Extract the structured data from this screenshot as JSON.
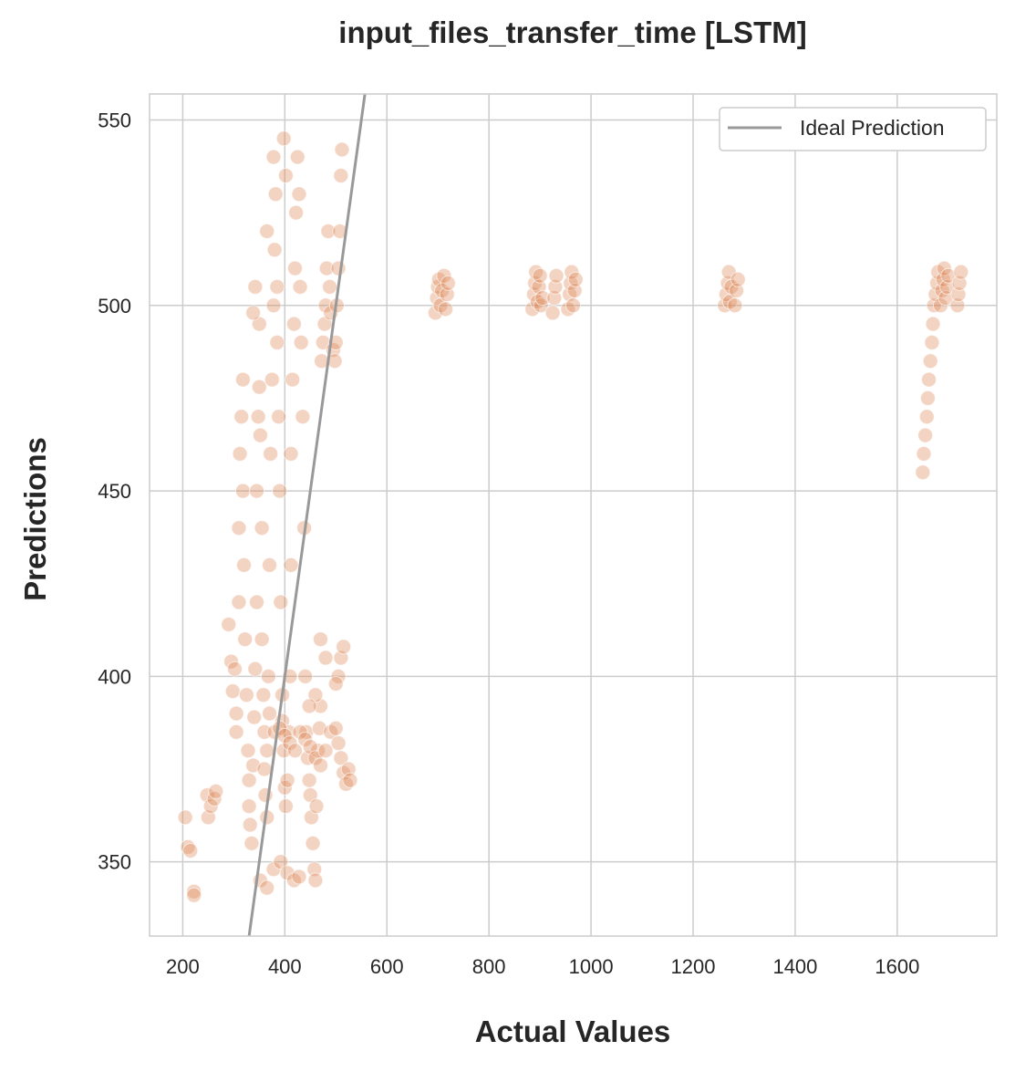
{
  "chart_data": {
    "type": "scatter",
    "title": "input_files_transfer_time [LSTM]",
    "xlabel": "Actual Values",
    "ylabel": "Predictions",
    "xlim": [
      135,
      1795
    ],
    "ylim": [
      330,
      557
    ],
    "xticks": [
      200,
      400,
      600,
      800,
      1000,
      1200,
      1400,
      1600
    ],
    "yticks": [
      350,
      400,
      450,
      500,
      550
    ],
    "grid": true,
    "legend_position": "top-right",
    "point_color": "#dd8452",
    "ideal_line_color": "#999999",
    "series": [
      {
        "name": "",
        "kind": "points",
        "points": [
          [
            205,
            362
          ],
          [
            210,
            354
          ],
          [
            215,
            353
          ],
          [
            222,
            342
          ],
          [
            222,
            341
          ],
          [
            248,
            368
          ],
          [
            250,
            362
          ],
          [
            255,
            365
          ],
          [
            262,
            367
          ],
          [
            265,
            369
          ],
          [
            290,
            414
          ],
          [
            295,
            404
          ],
          [
            298,
            396
          ],
          [
            302,
            402
          ],
          [
            305,
            390
          ],
          [
            305,
            385
          ],
          [
            310,
            420
          ],
          [
            310,
            440
          ],
          [
            312,
            460
          ],
          [
            315,
            470
          ],
          [
            318,
            480
          ],
          [
            318,
            450
          ],
          [
            320,
            430
          ],
          [
            322,
            410
          ],
          [
            325,
            395
          ],
          [
            328,
            380
          ],
          [
            330,
            372
          ],
          [
            330,
            365
          ],
          [
            332,
            360
          ],
          [
            335,
            355
          ],
          [
            338,
            376
          ],
          [
            340,
            389
          ],
          [
            342,
            402
          ],
          [
            345,
            420
          ],
          [
            345,
            450
          ],
          [
            348,
            470
          ],
          [
            350,
            478
          ],
          [
            352,
            465
          ],
          [
            355,
            440
          ],
          [
            355,
            410
          ],
          [
            358,
            395
          ],
          [
            360,
            385
          ],
          [
            360,
            375
          ],
          [
            362,
            368
          ],
          [
            365,
            362
          ],
          [
            365,
            380
          ],
          [
            368,
            400
          ],
          [
            370,
            430
          ],
          [
            372,
            460
          ],
          [
            375,
            480
          ],
          [
            378,
            500
          ],
          [
            380,
            515
          ],
          [
            382,
            530
          ],
          [
            385,
            505
          ],
          [
            385,
            490
          ],
          [
            388,
            470
          ],
          [
            390,
            450
          ],
          [
            392,
            420
          ],
          [
            395,
            395
          ],
          [
            395,
            388
          ],
          [
            398,
            380
          ],
          [
            400,
            370
          ],
          [
            402,
            365
          ],
          [
            405,
            372
          ],
          [
            408,
            385
          ],
          [
            410,
            400
          ],
          [
            412,
            430
          ],
          [
            412,
            460
          ],
          [
            415,
            480
          ],
          [
            418,
            495
          ],
          [
            420,
            510
          ],
          [
            422,
            525
          ],
          [
            425,
            540
          ],
          [
            428,
            530
          ],
          [
            430,
            505
          ],
          [
            432,
            490
          ],
          [
            435,
            470
          ],
          [
            438,
            440
          ],
          [
            440,
            400
          ],
          [
            442,
            385
          ],
          [
            445,
            378
          ],
          [
            448,
            372
          ],
          [
            450,
            368
          ],
          [
            452,
            362
          ],
          [
            455,
            355
          ],
          [
            458,
            348
          ],
          [
            460,
            345
          ],
          [
            462,
            365
          ],
          [
            465,
            380
          ],
          [
            468,
            386
          ],
          [
            470,
            392
          ],
          [
            472,
            485
          ],
          [
            475,
            490
          ],
          [
            478,
            495
          ],
          [
            480,
            500
          ],
          [
            482,
            510
          ],
          [
            485,
            520
          ],
          [
            488,
            505
          ],
          [
            490,
            498
          ],
          [
            495,
            488
          ],
          [
            498,
            485
          ],
          [
            500,
            490
          ],
          [
            502,
            500
          ],
          [
            505,
            510
          ],
          [
            508,
            520
          ],
          [
            510,
            535
          ],
          [
            512,
            542
          ],
          [
            398,
            545
          ],
          [
            402,
            535
          ],
          [
            378,
            540
          ],
          [
            365,
            520
          ],
          [
            350,
            495
          ],
          [
            342,
            505
          ],
          [
            338,
            498
          ],
          [
            370,
            390
          ],
          [
            380,
            385
          ],
          [
            390,
            386
          ],
          [
            400,
            384
          ],
          [
            410,
            382
          ],
          [
            420,
            380
          ],
          [
            430,
            385
          ],
          [
            440,
            383
          ],
          [
            450,
            381
          ],
          [
            460,
            378
          ],
          [
            470,
            376
          ],
          [
            480,
            380
          ],
          [
            490,
            385
          ],
          [
            500,
            386
          ],
          [
            505,
            382
          ],
          [
            510,
            378
          ],
          [
            515,
            374
          ],
          [
            520,
            371
          ],
          [
            525,
            375
          ],
          [
            528,
            372
          ],
          [
            505,
            400
          ],
          [
            510,
            405
          ],
          [
            515,
            408
          ],
          [
            500,
            398
          ],
          [
            480,
            405
          ],
          [
            470,
            410
          ],
          [
            460,
            395
          ],
          [
            448,
            392
          ],
          [
            352,
            345
          ],
          [
            365,
            343
          ],
          [
            378,
            348
          ],
          [
            392,
            350
          ],
          [
            405,
            347
          ],
          [
            418,
            345
          ],
          [
            428,
            346
          ],
          [
            695,
            498
          ],
          [
            698,
            502
          ],
          [
            700,
            505
          ],
          [
            702,
            507
          ],
          [
            705,
            500
          ],
          [
            708,
            504
          ],
          [
            712,
            508
          ],
          [
            715,
            499
          ],
          [
            718,
            503
          ],
          [
            720,
            506
          ],
          [
            885,
            499
          ],
          [
            888,
            503
          ],
          [
            890,
            506
          ],
          [
            892,
            509
          ],
          [
            895,
            501
          ],
          [
            898,
            505
          ],
          [
            900,
            508
          ],
          [
            902,
            500
          ],
          [
            905,
            502
          ],
          [
            925,
            498
          ],
          [
            928,
            502
          ],
          [
            930,
            505
          ],
          [
            932,
            508
          ],
          [
            955,
            499
          ],
          [
            958,
            503
          ],
          [
            960,
            506
          ],
          [
            962,
            509
          ],
          [
            965,
            500
          ],
          [
            968,
            504
          ],
          [
            970,
            507
          ],
          [
            1262,
            500
          ],
          [
            1265,
            503
          ],
          [
            1268,
            506
          ],
          [
            1270,
            509
          ],
          [
            1272,
            501
          ],
          [
            1275,
            505
          ],
          [
            1282,
            500
          ],
          [
            1285,
            504
          ],
          [
            1288,
            507
          ],
          [
            1650,
            455
          ],
          [
            1652,
            460
          ],
          [
            1655,
            465
          ],
          [
            1658,
            470
          ],
          [
            1660,
            475
          ],
          [
            1662,
            480
          ],
          [
            1665,
            485
          ],
          [
            1668,
            490
          ],
          [
            1670,
            495
          ],
          [
            1672,
            500
          ],
          [
            1675,
            503
          ],
          [
            1678,
            506
          ],
          [
            1680,
            509
          ],
          [
            1685,
            500
          ],
          [
            1688,
            504
          ],
          [
            1690,
            507
          ],
          [
            1692,
            510
          ],
          [
            1695,
            502
          ],
          [
            1698,
            505
          ],
          [
            1700,
            508
          ],
          [
            1718,
            500
          ],
          [
            1720,
            503
          ],
          [
            1722,
            506
          ],
          [
            1725,
            509
          ]
        ]
      },
      {
        "name": "Ideal Prediction",
        "kind": "line",
        "points": [
          [
            330,
            330
          ],
          [
            557,
            557
          ]
        ]
      }
    ]
  }
}
